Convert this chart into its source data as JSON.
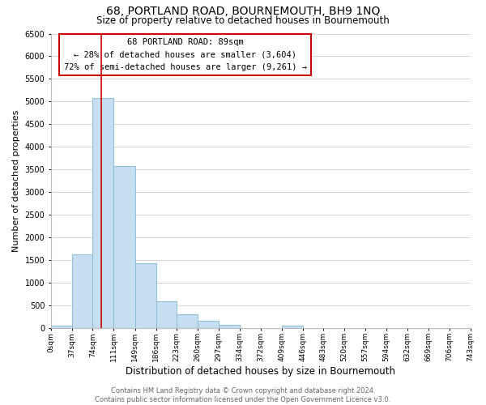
{
  "title": "68, PORTLAND ROAD, BOURNEMOUTH, BH9 1NQ",
  "subtitle": "Size of property relative to detached houses in Bournemouth",
  "xlabel": "Distribution of detached houses by size in Bournemouth",
  "ylabel": "Number of detached properties",
  "bin_edges": [
    0,
    37,
    74,
    111,
    149,
    186,
    223,
    260,
    297,
    334,
    372,
    409,
    446,
    483,
    520,
    557,
    594,
    632,
    669,
    706,
    743
  ],
  "bin_labels": [
    "0sqm",
    "37sqm",
    "74sqm",
    "111sqm",
    "149sqm",
    "186sqm",
    "223sqm",
    "260sqm",
    "297sqm",
    "334sqm",
    "372sqm",
    "409sqm",
    "446sqm",
    "483sqm",
    "520sqm",
    "557sqm",
    "594sqm",
    "632sqm",
    "669sqm",
    "706sqm",
    "743sqm"
  ],
  "bar_heights": [
    50,
    1620,
    5080,
    3580,
    1420,
    590,
    300,
    145,
    60,
    0,
    0,
    50,
    0,
    0,
    0,
    0,
    0,
    0,
    0,
    0
  ],
  "bar_color": "#c5dff0",
  "bar_edge_color": "#7fb8d8",
  "marker_value": 89,
  "marker_color": "#cc0000",
  "ylim": [
    0,
    6500
  ],
  "yticks": [
    0,
    500,
    1000,
    1500,
    2000,
    2500,
    3000,
    3500,
    4000,
    4500,
    5000,
    5500,
    6000,
    6500
  ],
  "annotation_title": "68 PORTLAND ROAD: 89sqm",
  "annotation_line1": "← 28% of detached houses are smaller (3,604)",
  "annotation_line2": "72% of semi-detached houses are larger (9,261) →",
  "footer_line1": "Contains HM Land Registry data © Crown copyright and database right 2024.",
  "footer_line2": "Contains public sector information licensed under the Open Government Licence v3.0.",
  "background_color": "#ffffff",
  "grid_color": "#cccccc"
}
